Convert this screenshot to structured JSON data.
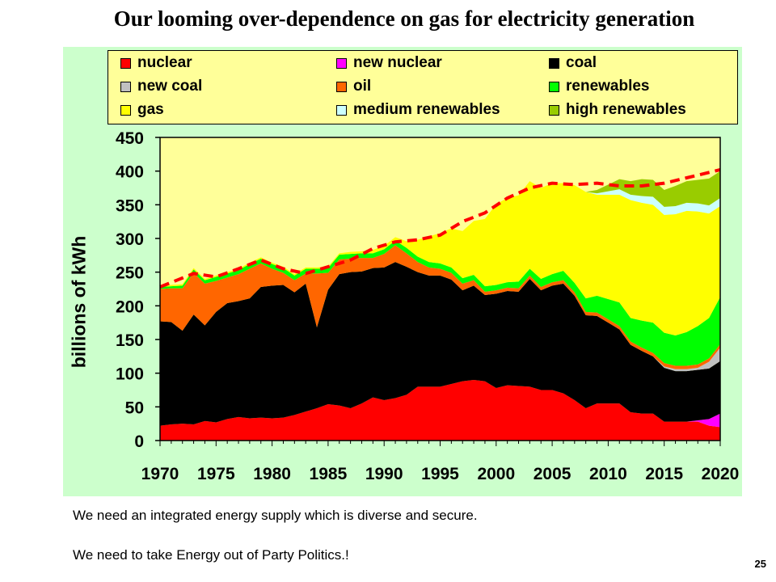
{
  "title": "Our looming over-dependence on gas for electricity generation",
  "footer_line1": "We need an integrated energy supply which is diverse and secure.",
  "footer_line2": "We need to take Energy out of Party Politics.!",
  "page_number": "25",
  "colors": {
    "nuclear": "#ff0000",
    "new_nuclear": "#ff00ff",
    "coal": "#000000",
    "new_coal": "#c0c0c0",
    "oil": "#ff6600",
    "renewables": "#00ff00",
    "gas": "#ffff00",
    "medium_renewables": "#ccffff",
    "high_renewables": "#99cc00",
    "total_line": "#ff0000",
    "panel": "#ccffcc",
    "plot": "#ffff99"
  },
  "chart_data": {
    "type": "area",
    "stacked": true,
    "ylabel": "billions of kWh",
    "ylim": [
      0,
      450
    ],
    "y_ticks": [
      "0",
      "50",
      "100",
      "150",
      "200",
      "250",
      "300",
      "350",
      "400",
      "450"
    ],
    "xlim": [
      1970,
      2020
    ],
    "x_ticks": [
      "1970",
      "1975",
      "1980",
      "1985",
      "1990",
      "1995",
      "2000",
      "2005",
      "2010",
      "2015",
      "2020"
    ],
    "legend": [
      "nuclear",
      "new nuclear",
      "coal",
      "new coal",
      "oil",
      "renewables",
      "gas",
      "medium renewables",
      "high renewables"
    ],
    "x": [
      1970,
      1971,
      1972,
      1973,
      1974,
      1975,
      1976,
      1977,
      1978,
      1979,
      1980,
      1981,
      1982,
      1983,
      1984,
      1985,
      1986,
      1987,
      1988,
      1989,
      1990,
      1991,
      1992,
      1993,
      1994,
      1995,
      1996,
      1997,
      1998,
      1999,
      2000,
      2001,
      2002,
      2003,
      2004,
      2005,
      2006,
      2007,
      2008,
      2009,
      2010,
      2011,
      2012,
      2013,
      2014,
      2015,
      2016,
      2017,
      2018,
      2019,
      2020
    ],
    "series": [
      {
        "name": "nuclear",
        "values": [
          22,
          24,
          25,
          24,
          29,
          27,
          32,
          35,
          33,
          34,
          33,
          34,
          38,
          43,
          48,
          54,
          52,
          48,
          55,
          64,
          60,
          63,
          68,
          80,
          80,
          80,
          84,
          88,
          90,
          88,
          78,
          82,
          81,
          80,
          75,
          75,
          70,
          60,
          48,
          55,
          55,
          55,
          42,
          40,
          40,
          28,
          28,
          28,
          28,
          22,
          20
        ]
      },
      {
        "name": "new nuclear",
        "values": [
          0,
          0,
          0,
          0,
          0,
          0,
          0,
          0,
          0,
          0,
          0,
          0,
          0,
          0,
          0,
          0,
          0,
          0,
          0,
          0,
          0,
          0,
          0,
          0,
          0,
          0,
          0,
          0,
          0,
          0,
          0,
          0,
          0,
          0,
          0,
          0,
          0,
          0,
          0,
          0,
          0,
          0,
          0,
          0,
          0,
          0,
          0,
          0,
          2,
          10,
          20
        ]
      },
      {
        "name": "coal",
        "values": [
          155,
          152,
          138,
          163,
          142,
          164,
          172,
          172,
          178,
          194,
          197,
          197,
          182,
          190,
          120,
          170,
          195,
          202,
          196,
          192,
          197,
          202,
          190,
          170,
          165,
          165,
          155,
          135,
          140,
          128,
          140,
          140,
          140,
          160,
          148,
          155,
          163,
          155,
          138,
          130,
          120,
          110,
          100,
          93,
          85,
          80,
          75,
          75,
          75,
          75,
          78
        ]
      },
      {
        "name": "new coal",
        "values": [
          0,
          0,
          0,
          0,
          0,
          0,
          0,
          0,
          0,
          0,
          0,
          0,
          0,
          0,
          0,
          0,
          0,
          0,
          0,
          0,
          0,
          0,
          0,
          0,
          0,
          0,
          0,
          0,
          0,
          0,
          0,
          0,
          0,
          0,
          0,
          0,
          0,
          0,
          0,
          0,
          0,
          0,
          0,
          0,
          0,
          2,
          3,
          3,
          3,
          10,
          20
        ]
      },
      {
        "name": "oil",
        "values": [
          48,
          50,
          63,
          62,
          62,
          46,
          38,
          40,
          44,
          35,
          25,
          18,
          18,
          15,
          80,
          25,
          22,
          20,
          20,
          15,
          20,
          25,
          20,
          15,
          12,
          10,
          10,
          10,
          8,
          5,
          5,
          5,
          5,
          5,
          5,
          5,
          5,
          5,
          5,
          5,
          5,
          5,
          5,
          5,
          5,
          5,
          5,
          5,
          5,
          5,
          5
        ]
      },
      {
        "name": "renewables",
        "values": [
          3,
          3,
          4,
          5,
          5,
          6,
          6,
          6,
          7,
          7,
          7,
          7,
          7,
          7,
          7,
          7,
          7,
          7,
          7,
          7,
          7,
          7,
          8,
          8,
          8,
          8,
          8,
          8,
          8,
          8,
          8,
          8,
          10,
          10,
          12,
          12,
          14,
          14,
          20,
          25,
          30,
          35,
          35,
          40,
          45,
          45,
          45,
          50,
          57,
          60,
          70
        ]
      },
      {
        "name": "gas",
        "values": [
          2,
          2,
          2,
          2,
          2,
          2,
          2,
          2,
          2,
          2,
          2,
          2,
          2,
          2,
          2,
          2,
          2,
          3,
          3,
          5,
          5,
          5,
          10,
          25,
          38,
          45,
          58,
          70,
          80,
          100,
          120,
          125,
          128,
          130,
          135,
          135,
          130,
          145,
          158,
          150,
          155,
          160,
          175,
          175,
          175,
          175,
          180,
          180,
          170,
          155,
          135
        ]
      },
      {
        "name": "medium renewables",
        "values": [
          0,
          0,
          0,
          0,
          0,
          0,
          0,
          0,
          0,
          0,
          0,
          0,
          0,
          0,
          0,
          0,
          0,
          0,
          0,
          0,
          0,
          0,
          0,
          0,
          0,
          0,
          0,
          0,
          0,
          0,
          0,
          0,
          0,
          0,
          0,
          0,
          0,
          0,
          0,
          2,
          5,
          8,
          8,
          10,
          12,
          12,
          12,
          12,
          12,
          12,
          12
        ]
      },
      {
        "name": "high renewables",
        "values": [
          0,
          0,
          0,
          0,
          0,
          0,
          0,
          0,
          0,
          0,
          0,
          0,
          0,
          0,
          0,
          0,
          0,
          0,
          0,
          0,
          0,
          0,
          0,
          0,
          0,
          0,
          0,
          0,
          0,
          0,
          0,
          0,
          0,
          0,
          0,
          0,
          0,
          0,
          0,
          5,
          10,
          15,
          20,
          25,
          25,
          25,
          30,
          32,
          35,
          40,
          40
        ]
      }
    ],
    "total_dashed": {
      "x": [
        1970,
        1973,
        1975,
        1977,
        1979,
        1981,
        1983,
        1985,
        1987,
        1989,
        1991,
        1993,
        1995,
        1997,
        1999,
        2001,
        2003,
        2005,
        2007,
        2009,
        2011,
        2013,
        2015,
        2017,
        2020
      ],
      "values": [
        228,
        248,
        243,
        255,
        268,
        255,
        248,
        258,
        268,
        285,
        295,
        298,
        305,
        325,
        338,
        360,
        375,
        382,
        380,
        382,
        378,
        378,
        382,
        390,
        402
      ]
    }
  }
}
